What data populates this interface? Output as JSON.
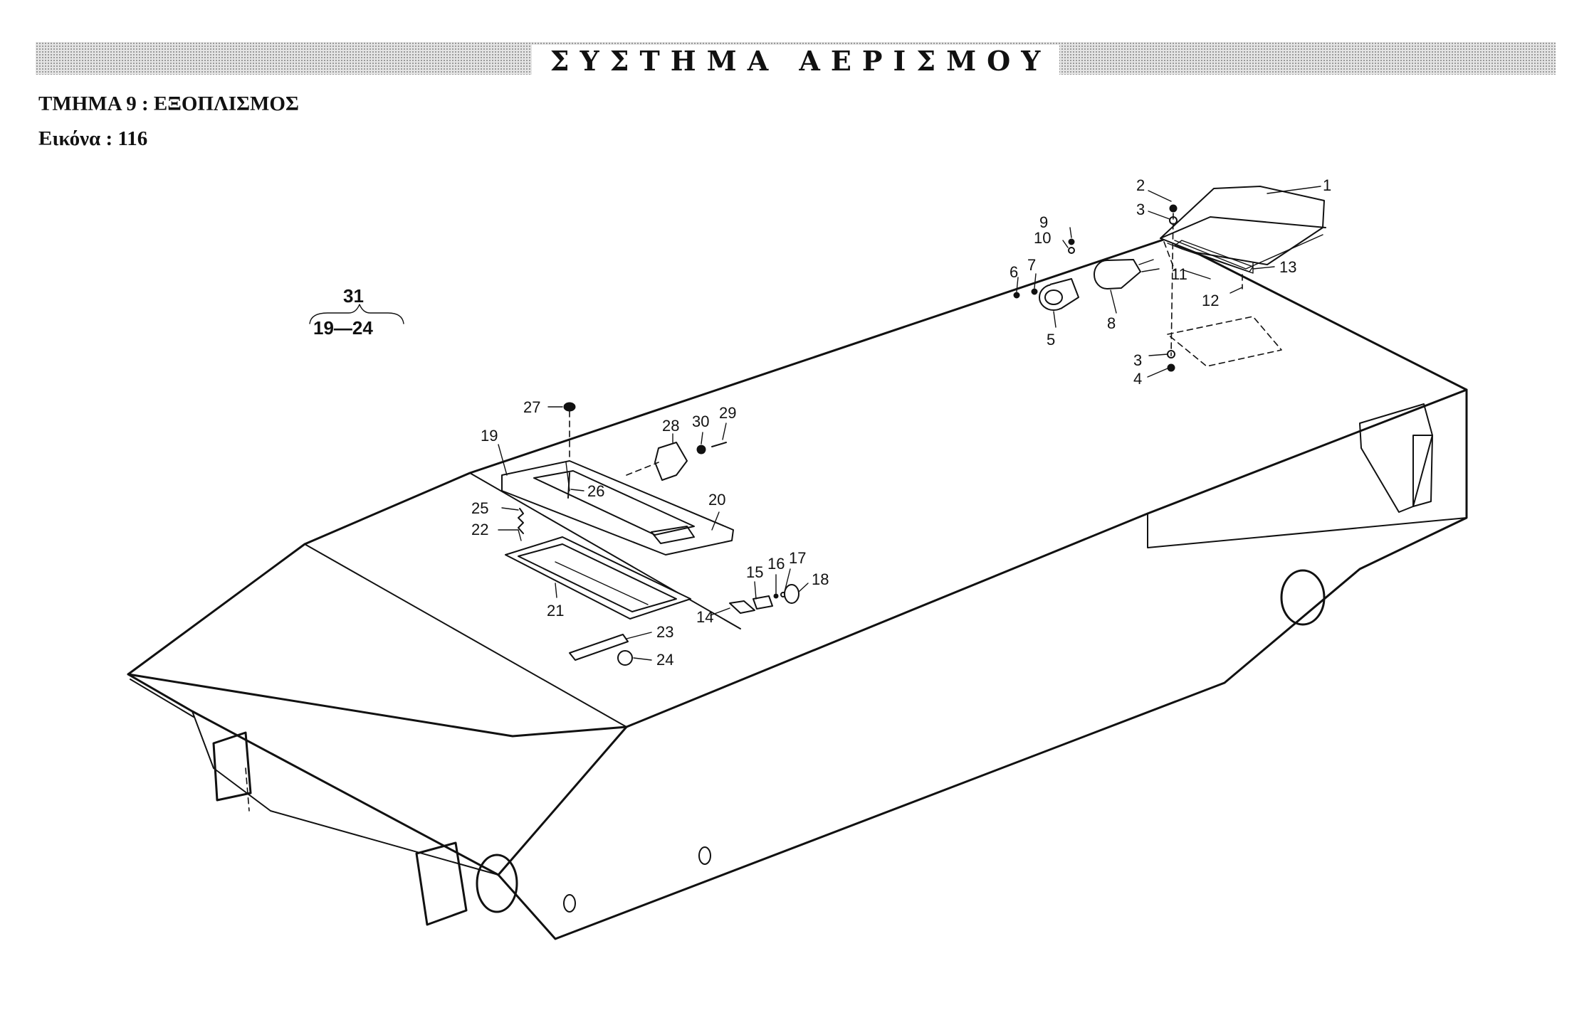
{
  "header": {
    "title": "ΣΥΣΤΗΜΑ ΑΕΡΙΣΜΟΥ",
    "section": "ΤΜΗΜΑ 9 : ΕΞΟΠΛΙΣΜΟΣ",
    "figure": "Εικόνα : 116"
  },
  "assembly_group": {
    "label": "31",
    "range": "19—24"
  },
  "callouts": {
    "c1": "1",
    "c2": "2",
    "c3a": "3",
    "c3b": "3",
    "c4": "4",
    "c5": "5",
    "c6": "6",
    "c7": "7",
    "c8": "8",
    "c9": "9",
    "c10": "10",
    "c11": "11",
    "c12": "12",
    "c13": "13",
    "c14": "14",
    "c15": "15",
    "c16": "16",
    "c17": "17",
    "c18": "18",
    "c19": "19",
    "c20": "20",
    "c21": "21",
    "c22": "22",
    "c23": "23",
    "c24": "24",
    "c25": "25",
    "c26": "26",
    "c27": "27",
    "c28": "28",
    "c29": "29",
    "c30": "30"
  }
}
